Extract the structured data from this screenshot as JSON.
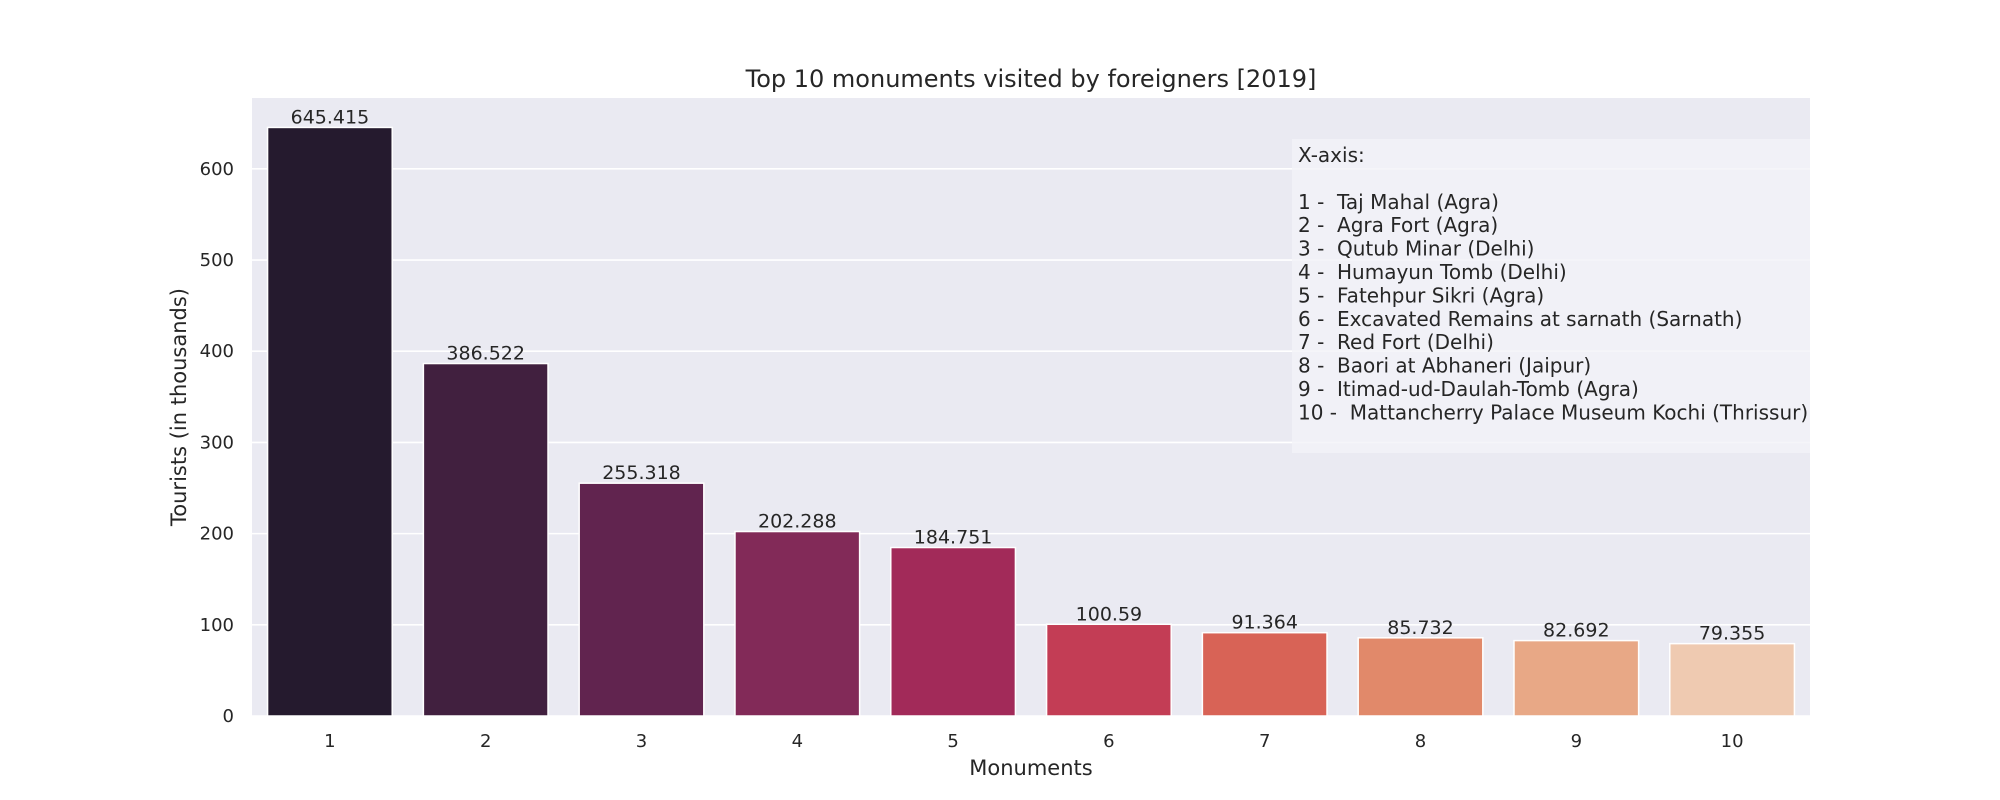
{
  "chart_data": {
    "type": "bar",
    "title": "Top 10 monuments visited by foreigners [2019]",
    "xlabel": "Monuments",
    "ylabel": "Tourists (in thousands)",
    "categories": [
      "1",
      "2",
      "3",
      "4",
      "5",
      "6",
      "7",
      "8",
      "9",
      "10"
    ],
    "values": [
      645.415,
      386.522,
      255.318,
      202.288,
      184.751,
      100.59,
      91.364,
      85.732,
      82.692,
      79.355
    ],
    "value_labels": [
      "645.415",
      "386.522",
      "255.318",
      "202.288",
      "184.751",
      "100.59",
      "91.364",
      "85.732",
      "82.692",
      "79.355"
    ],
    "ylim": [
      0,
      677.7
    ],
    "yticks": [
      0,
      100,
      200,
      300,
      400,
      500,
      600
    ],
    "grid": true,
    "colors": [
      "#251a2e",
      "#41203f",
      "#61244f",
      "#822a58",
      "#a22a59",
      "#c33d55",
      "#d86356",
      "#e1896a",
      "#e8a886",
      "#efcab1"
    ],
    "annotation": {
      "placement": "upper-right",
      "lines": [
        "X-axis:",
        "",
        "1 -  Taj Mahal (Agra)",
        "2 -  Agra Fort (Agra)",
        "3 -  Qutub Minar (Delhi)",
        "4 -  Humayun Tomb (Delhi)",
        "5 -  Fatehpur Sikri (Agra)",
        "6 -  Excavated Remains at sarnath (Sarnath)",
        "7 -  Red Fort (Delhi)",
        "8 -  Baori at Abhaneri (Jaipur)",
        "9 -  Itimad-ud-Daulah-Tomb (Agra)",
        "10 -  Mattancherry Palace Museum Kochi (Thrissur)"
      ]
    }
  },
  "theme": {
    "plot_background": "#eaeaf2",
    "grid_color": "#ffffff",
    "legend_background": "#f3f3f7"
  }
}
